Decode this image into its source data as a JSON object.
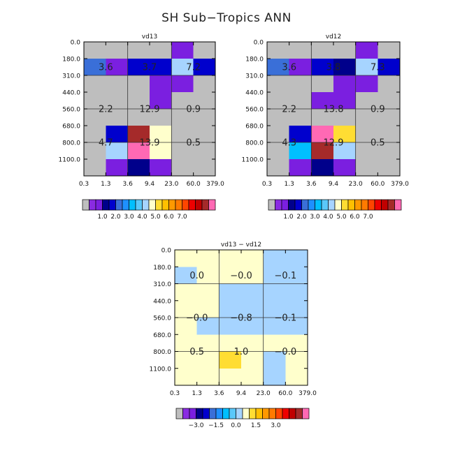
{
  "title": "SH Sub−Tropics ANN",
  "chart_data": [
    {
      "type": "heatmap",
      "title": "vd13",
      "x_ticks": [
        "0.3",
        "1.3",
        "3.6",
        "9.4",
        "23.0",
        "60.0",
        "379.0"
      ],
      "y_ticks": [
        "0.0",
        "180.0",
        "310.0",
        "440.0",
        "560.0",
        "680.0",
        "800.0",
        "1100.0"
      ],
      "cells": [
        [
          "c0",
          "c0",
          "c0",
          "c0",
          "c2",
          "c0"
        ],
        [
          "c5",
          "c2",
          "c4",
          "c4",
          "c9",
          "c4"
        ],
        [
          "c0",
          "c0",
          "c0",
          "c2",
          "c2",
          "c0"
        ],
        [
          "c0",
          "c0",
          "c0",
          "c2",
          "c0",
          "c0"
        ],
        [
          "c0",
          "c0",
          "c0",
          "c0",
          "c0",
          "c0"
        ],
        [
          "c0",
          "c4",
          "c18",
          "c10",
          "c0",
          "c0"
        ],
        [
          "c0",
          "c9",
          "c19",
          "c10",
          "c0",
          "c0"
        ],
        [
          "c0",
          "c2",
          "c3",
          "c2",
          "c0",
          "c0"
        ]
      ],
      "region_labels": [
        {
          "text": "3.6",
          "col": 1,
          "row": 1.5
        },
        {
          "text": "3.7",
          "col": 3,
          "row": 1.5
        },
        {
          "text": "7.2",
          "col": 5,
          "row": 1.5
        },
        {
          "text": "2.2",
          "col": 1,
          "row": 4
        },
        {
          "text": "12.9",
          "col": 3,
          "row": 4
        },
        {
          "text": "0.9",
          "col": 5,
          "row": 4
        },
        {
          "text": "4.7",
          "col": 1,
          "row": 6
        },
        {
          "text": "13.9",
          "col": 3,
          "row": 6
        },
        {
          "text": "0.5",
          "col": 5,
          "row": 6
        }
      ],
      "colorbar_colors": [
        "c0",
        "c1",
        "c2",
        "c3",
        "c4",
        "c5",
        "c6",
        "c7",
        "c8",
        "c9",
        "c10",
        "c11",
        "c12",
        "c13",
        "c14",
        "c15",
        "c16",
        "c17",
        "c18",
        "c19"
      ],
      "colorbar_labels": [
        {
          "text": "1.0",
          "at": 3
        },
        {
          "text": "2.0",
          "at": 5
        },
        {
          "text": "3.0",
          "at": 7
        },
        {
          "text": "4.0",
          "at": 9
        },
        {
          "text": "5.0",
          "at": 11
        },
        {
          "text": "6.0",
          "at": 13
        },
        {
          "text": "7.0",
          "at": 15
        }
      ]
    },
    {
      "type": "heatmap",
      "title": "vd12",
      "x_ticks": [
        "0.3",
        "1.3",
        "3.6",
        "9.4",
        "23.0",
        "60.0",
        "379.0"
      ],
      "y_ticks": [
        "0.0",
        "180.0",
        "310.0",
        "440.0",
        "560.0",
        "680.0",
        "800.0",
        "1100.0"
      ],
      "cells": [
        [
          "c0",
          "c0",
          "c0",
          "c0",
          "c2",
          "c0"
        ],
        [
          "c5",
          "c2",
          "c4",
          "c3",
          "c9",
          "c4"
        ],
        [
          "c0",
          "c0",
          "c0",
          "c2",
          "c2",
          "c0"
        ],
        [
          "c0",
          "c0",
          "c2",
          "c2",
          "c0",
          "c0"
        ],
        [
          "c0",
          "c0",
          "c0",
          "c0",
          "c0",
          "c0"
        ],
        [
          "c0",
          "c4",
          "c19",
          "c11",
          "c0",
          "c0"
        ],
        [
          "c0",
          "c7",
          "c18",
          "c9",
          "c0",
          "c0"
        ],
        [
          "c0",
          "c2",
          "c3",
          "c2",
          "c0",
          "c0"
        ]
      ],
      "region_labels": [
        {
          "text": "3.6",
          "col": 1,
          "row": 1.5
        },
        {
          "text": "3.8",
          "col": 3,
          "row": 1.5
        },
        {
          "text": "7.3",
          "col": 5,
          "row": 1.5
        },
        {
          "text": "2.2",
          "col": 1,
          "row": 4
        },
        {
          "text": "13.8",
          "col": 3,
          "row": 4
        },
        {
          "text": "0.9",
          "col": 5,
          "row": 4
        },
        {
          "text": "4.3",
          "col": 1,
          "row": 6
        },
        {
          "text": "12.9",
          "col": 3,
          "row": 6
        },
        {
          "text": "0.5",
          "col": 5,
          "row": 6
        }
      ],
      "colorbar_colors": [
        "c0",
        "c1",
        "c2",
        "c3",
        "c4",
        "c5",
        "c6",
        "c7",
        "c8",
        "c9",
        "c10",
        "c11",
        "c12",
        "c13",
        "c14",
        "c15",
        "c16",
        "c17",
        "c18",
        "c19"
      ],
      "colorbar_labels": [
        {
          "text": "1.0",
          "at": 3
        },
        {
          "text": "2.0",
          "at": 5
        },
        {
          "text": "3.0",
          "at": 7
        },
        {
          "text": "4.0",
          "at": 9
        },
        {
          "text": "5.0",
          "at": 11
        },
        {
          "text": "6.0",
          "at": 13
        },
        {
          "text": "7.0",
          "at": 15
        }
      ]
    },
    {
      "type": "heatmap",
      "title": "vd13 − vd12",
      "x_ticks": [
        "0.3",
        "1.3",
        "3.6",
        "9.4",
        "23.0",
        "60.0",
        "379.0"
      ],
      "y_ticks": [
        "0.0",
        "180.0",
        "310.0",
        "440.0",
        "560.0",
        "680.0",
        "800.0",
        "1100.0"
      ],
      "cells": [
        [
          "c10",
          "c10",
          "c10",
          "c10",
          "c9",
          "c9"
        ],
        [
          "c9",
          "c10",
          "c10",
          "c10",
          "c9",
          "c9"
        ],
        [
          "c10",
          "c10",
          "c9",
          "c9",
          "c9",
          "c9"
        ],
        [
          "c10",
          "c10",
          "c9",
          "c9",
          "c9",
          "c9"
        ],
        [
          "c10",
          "c9",
          "c9",
          "c9",
          "c9",
          "c9"
        ],
        [
          "c10",
          "c10",
          "c10",
          "c10",
          "c10",
          "c10"
        ],
        [
          "c10",
          "c10",
          "c11",
          "c10",
          "c9",
          "c10"
        ],
        [
          "c10",
          "c10",
          "c10",
          "c10",
          "c9",
          "c10"
        ]
      ],
      "region_labels": [
        {
          "text": "0.0",
          "col": 1,
          "row": 1.5
        },
        {
          "text": "−0.0",
          "col": 3,
          "row": 1.5
        },
        {
          "text": "−0.1",
          "col": 5,
          "row": 1.5
        },
        {
          "text": "−0.0",
          "col": 1,
          "row": 4
        },
        {
          "text": "−0.8",
          "col": 3,
          "row": 4
        },
        {
          "text": "−0.1",
          "col": 5,
          "row": 4
        },
        {
          "text": "0.5",
          "col": 1,
          "row": 6
        },
        {
          "text": "1.0",
          "col": 3,
          "row": 6
        },
        {
          "text": "−0.0",
          "col": 5,
          "row": 6
        }
      ],
      "colorbar_colors": [
        "c0",
        "c1",
        "c2",
        "c3",
        "c4",
        "c5",
        "c6",
        "c7",
        "c8",
        "c9",
        "c10",
        "c11",
        "c12",
        "c13",
        "c14",
        "c15",
        "c16",
        "c17",
        "c18",
        "c19"
      ],
      "colorbar_labels": [
        {
          "text": "−3.0",
          "at": 3
        },
        {
          "text": "−1.5",
          "at": 6
        },
        {
          "text": "0.0",
          "at": 9
        },
        {
          "text": "1.5",
          "at": 12
        },
        {
          "text": "3.0",
          "at": 15
        }
      ]
    }
  ],
  "palette": {
    "c0": "#bebebe",
    "c1": "#8a2be2",
    "c2": "#7b1fe0",
    "c3": "#00008b",
    "c4": "#0000cd",
    "c5": "#3a6fd8",
    "c6": "#1e90ff",
    "c7": "#00bfff",
    "c8": "#5ac8fa",
    "c9": "#a6d4ff",
    "c10": "#ffffcc",
    "c11": "#ffdd33",
    "c12": "#ffc000",
    "c13": "#ff9900",
    "c14": "#ff7a00",
    "c15": "#ff4500",
    "c16": "#ee0000",
    "c17": "#c00000",
    "c18": "#a52a2a",
    "c19": "#ff69b4"
  }
}
